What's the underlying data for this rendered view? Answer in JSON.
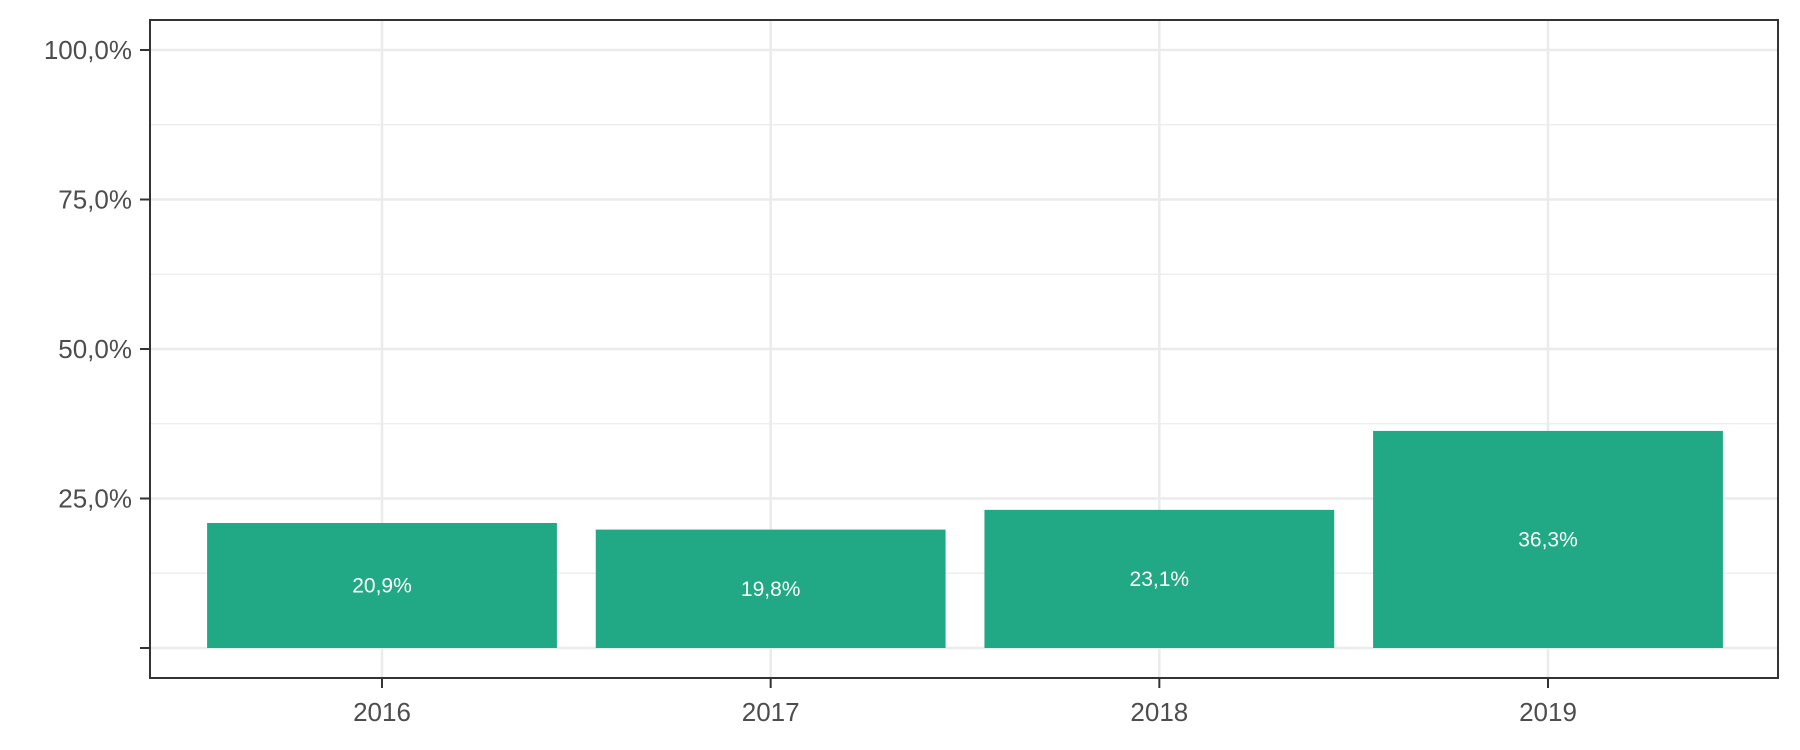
{
  "chart_data": {
    "type": "bar",
    "categories": [
      "2016",
      "2017",
      "2018",
      "2019"
    ],
    "values": [
      20.9,
      19.8,
      23.1,
      36.3
    ],
    "value_labels": [
      "20,9%",
      "19,8%",
      "23,1%",
      "36,3%"
    ],
    "title": "",
    "xlabel": "",
    "ylabel": "",
    "ylim": [
      0,
      100
    ],
    "y_ticks": [
      0,
      25,
      50,
      75,
      100
    ],
    "y_tick_labels": [
      "",
      "25,0%",
      "50,0%",
      "75,0%",
      "100,0%"
    ],
    "grid": true,
    "bar_color": "#21a884",
    "label_color": "#ffffff"
  }
}
